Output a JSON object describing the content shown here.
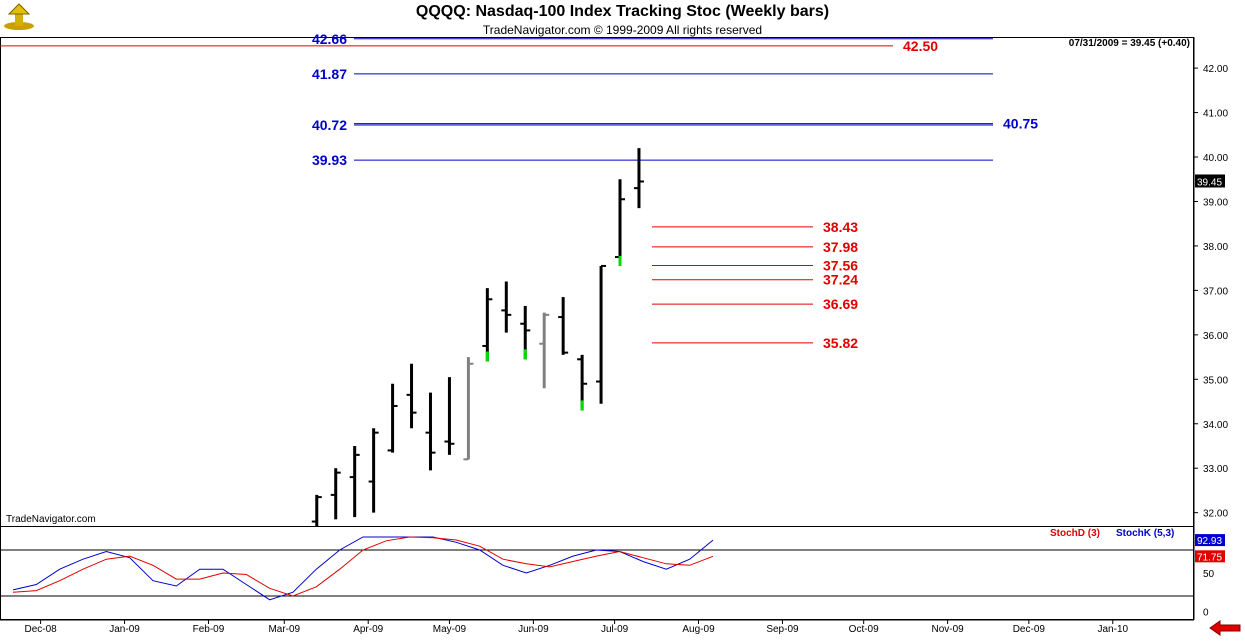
{
  "header": {
    "title": "QQQQ:  Nasdaq-100 Index Tracking Stoc  (Weekly bars)",
    "subtitle": "TradeNavigator.com © 1999-2009 All rights reserved",
    "last_info": "07/31/2009 = 39.45 (+0.40)",
    "watermark": "TradeNavigator.com",
    "logo_icon": "trade-navigator-logo-icon",
    "back_icon": "red-left-arrow-icon"
  },
  "colors": {
    "bar": "#000000",
    "bar_gray": "#808080",
    "bar_green": "#00dd00",
    "blue_line": "#0000cc",
    "red_line": "#e00000",
    "stoch_d": "#e00000",
    "stoch_k": "#0000cc"
  },
  "chart_data": [
    {
      "type": "ohlc",
      "title": "QQQQ:  Nasdaq-100 Index Tracking Stoc  (Weekly bars)",
      "ylim": [
        31.7,
        42.7
      ],
      "y_ticks": [
        "32.00",
        "33.00",
        "34.00",
        "35.00",
        "36.00",
        "37.00",
        "38.00",
        "39.00",
        "40.00",
        "41.00",
        "42.00"
      ],
      "x_ticks": [
        "Dec-08",
        "Jan-09",
        "Feb-09",
        "Mar-09",
        "Apr-09",
        "May-09",
        "Jun-09",
        "Jul-09",
        "Aug-09",
        "Sep-09",
        "Oct-09",
        "Nov-09",
        "Dec-09",
        "Jan-10"
      ],
      "last_price_label": "39.45",
      "bars": [
        {
          "week": "2009-03-13",
          "open": 31.8,
          "high": 32.4,
          "low": 31.6,
          "close": 32.35,
          "color": "black"
        },
        {
          "week": "2009-03-20",
          "open": 32.4,
          "high": 33.0,
          "low": 31.85,
          "close": 32.9,
          "color": "black"
        },
        {
          "week": "2009-03-27",
          "open": 32.8,
          "high": 33.5,
          "low": 31.9,
          "close": 33.3,
          "color": "black"
        },
        {
          "week": "2009-04-03",
          "open": 32.7,
          "high": 33.9,
          "low": 32.0,
          "close": 33.8,
          "color": "black"
        },
        {
          "week": "2009-04-10",
          "open": 33.4,
          "high": 34.9,
          "low": 33.35,
          "close": 34.4,
          "color": "black"
        },
        {
          "week": "2009-04-17",
          "open": 34.65,
          "high": 35.35,
          "low": 33.9,
          "close": 34.25,
          "color": "black"
        },
        {
          "week": "2009-04-24",
          "open": 33.8,
          "high": 34.7,
          "low": 32.95,
          "close": 33.35,
          "color": "black"
        },
        {
          "week": "2009-05-01",
          "open": 33.6,
          "high": 35.05,
          "low": 33.3,
          "close": 33.55,
          "color": "black"
        },
        {
          "week": "2009-05-08",
          "open": 33.2,
          "high": 35.5,
          "low": 33.2,
          "close": 35.35,
          "color": "gray"
        },
        {
          "week": "2009-05-15",
          "open": 35.75,
          "high": 37.05,
          "low": 35.4,
          "close": 36.8,
          "color": "green"
        },
        {
          "week": "2009-05-22",
          "open": 36.55,
          "high": 37.2,
          "low": 36.05,
          "close": 36.45,
          "color": "black"
        },
        {
          "week": "2009-05-29",
          "open": 36.25,
          "high": 36.65,
          "low": 35.45,
          "close": 36.1,
          "color": "green"
        },
        {
          "week": "2009-06-05",
          "open": 35.8,
          "high": 36.5,
          "low": 34.8,
          "close": 36.45,
          "color": "gray"
        },
        {
          "week": "2009-06-12",
          "open": 36.4,
          "high": 36.85,
          "low": 35.55,
          "close": 35.6,
          "color": "black"
        },
        {
          "week": "2009-06-19",
          "open": 35.45,
          "high": 35.55,
          "low": 34.3,
          "close": 34.9,
          "color": "green"
        },
        {
          "week": "2009-06-26",
          "open": 34.95,
          "high": 37.55,
          "low": 34.45,
          "close": 37.55,
          "color": "black"
        },
        {
          "week": "2009-07-03",
          "open": 37.75,
          "high": 39.5,
          "low": 37.55,
          "close": 39.05,
          "color": "green"
        },
        {
          "week": "2009-07-10",
          "open": 39.3,
          "high": 40.2,
          "low": 38.85,
          "close": 39.45,
          "color": "black"
        }
      ],
      "levels": [
        {
          "label": "42.66",
          "value": 42.66,
          "color": "blue",
          "side": "left"
        },
        {
          "label": "42.50",
          "value": 42.5,
          "color": "red",
          "side": "right"
        },
        {
          "label": "41.87",
          "value": 41.87,
          "color": "blue",
          "side": "left"
        },
        {
          "label": "40.72",
          "value": 40.72,
          "color": "blue",
          "side": "left"
        },
        {
          "label": "40.75",
          "value": 40.75,
          "color": "blue",
          "side": "right"
        },
        {
          "label": "39.93",
          "value": 39.93,
          "color": "blue",
          "side": "left"
        },
        {
          "label": "38.43",
          "value": 38.43,
          "color": "red",
          "side": "short"
        },
        {
          "label": "37.98",
          "value": 37.98,
          "color": "red",
          "side": "short"
        },
        {
          "label": "37.56",
          "value": 37.56,
          "color": "red",
          "side": "short"
        },
        {
          "label": "37.24",
          "value": 37.24,
          "color": "red",
          "side": "short"
        },
        {
          "label": "36.69",
          "value": 36.69,
          "color": "red",
          "side": "short"
        },
        {
          "label": "35.82",
          "value": 35.82,
          "color": "red",
          "side": "short"
        }
      ]
    },
    {
      "type": "line",
      "ylim": [
        -10,
        110
      ],
      "y_ticks": [
        "0",
        "50"
      ],
      "reference_lines": [
        80,
        20
      ],
      "legend": [
        "StochD (3)",
        "StochK (5,3)"
      ],
      "last_values": {
        "k": "92.93",
        "d": "71.75"
      },
      "series": [
        {
          "name": "StochK (5,3)",
          "color": "blue",
          "values": [
            28,
            35,
            55,
            68,
            78,
            70,
            40,
            33,
            55,
            55,
            35,
            15,
            25,
            55,
            80,
            97,
            97,
            97,
            97,
            90,
            80,
            60,
            50,
            60,
            72,
            80,
            78,
            65,
            55,
            68,
            92.93
          ]
        },
        {
          "name": "StochD (3)",
          "color": "red",
          "values": [
            25,
            27,
            40,
            55,
            68,
            72,
            60,
            42,
            42,
            50,
            48,
            30,
            20,
            32,
            55,
            80,
            92,
            97,
            96,
            93,
            85,
            68,
            62,
            58,
            65,
            72,
            78,
            70,
            62,
            60,
            71.75
          ]
        }
      ]
    }
  ]
}
